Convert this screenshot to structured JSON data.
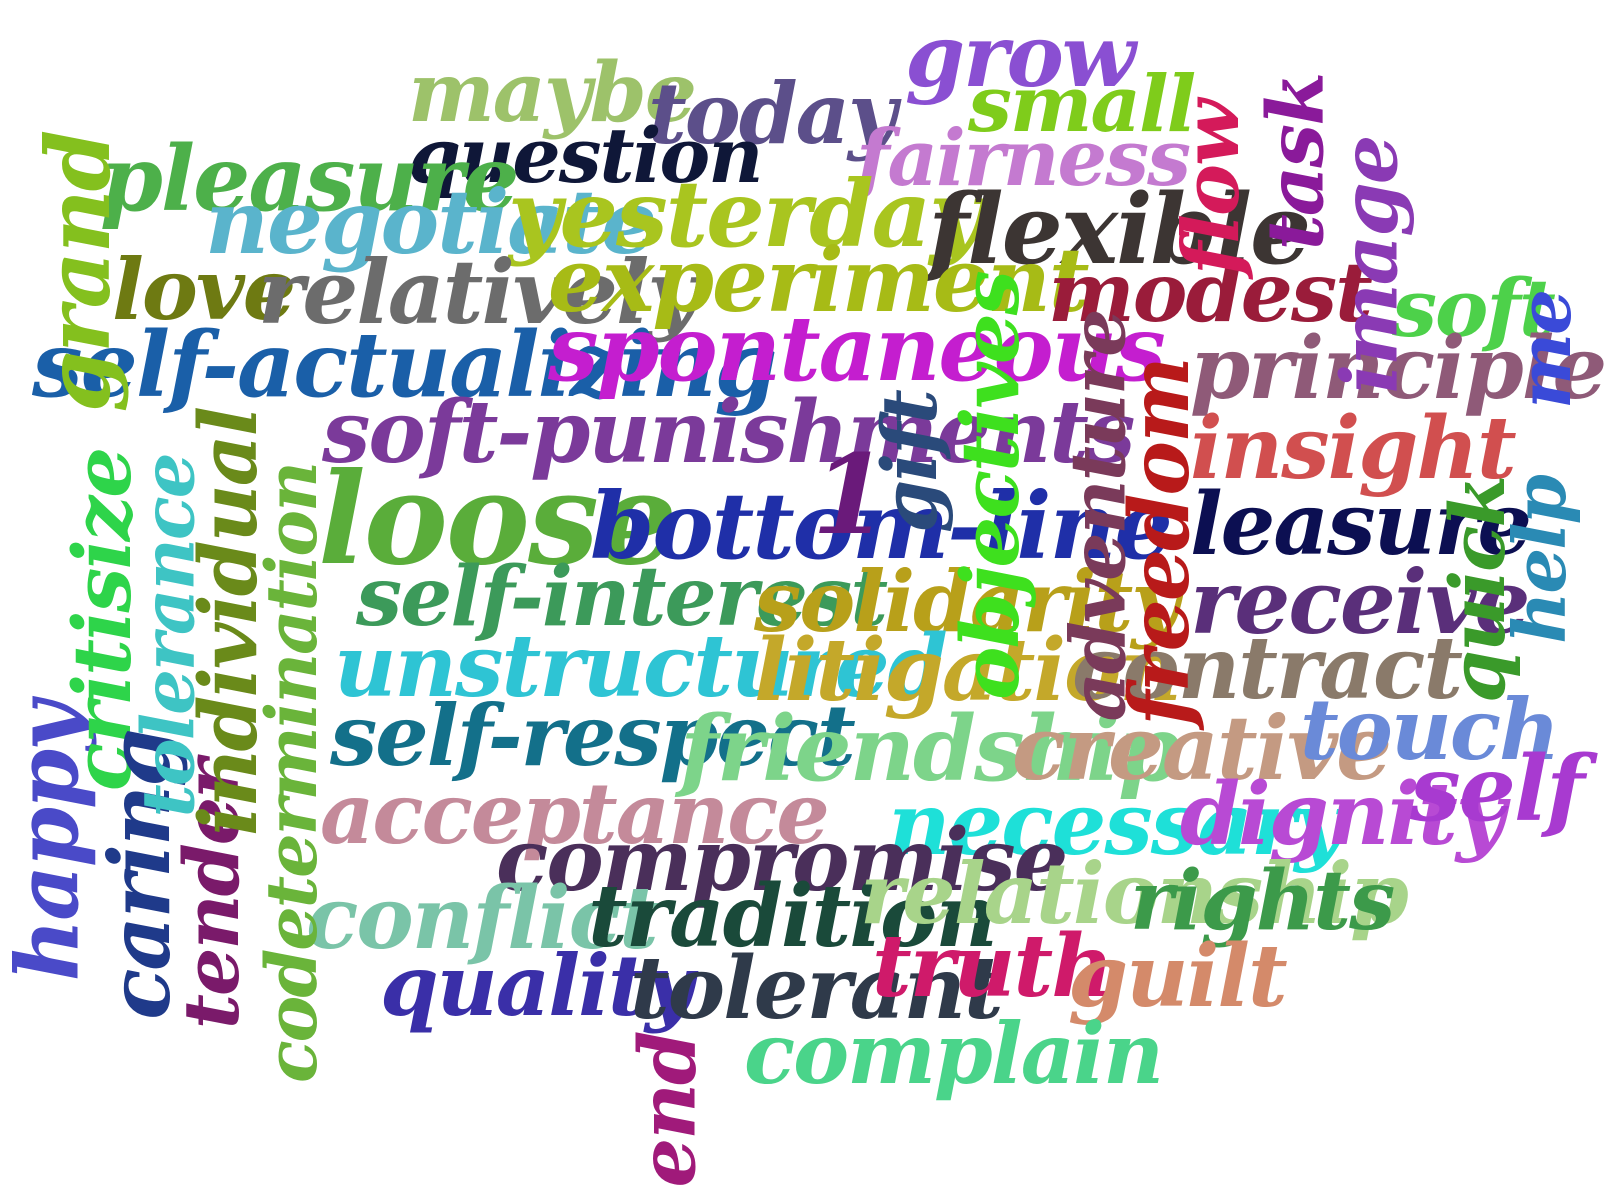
{
  "words": [
    {
      "text": "grow",
      "color": "#8a4fd2"
    },
    {
      "text": "maybe",
      "color": "#9dc26a"
    },
    {
      "text": "today",
      "color": "#5c4f8a"
    },
    {
      "text": "small",
      "color": "#7fcc1b"
    },
    {
      "text": "question",
      "color": "#0f1738"
    },
    {
      "text": "fairness",
      "color": "#c47ad0"
    },
    {
      "text": "pleasure",
      "color": "#4db04a"
    },
    {
      "text": "negotiate",
      "color": "#5ab4cc"
    },
    {
      "text": "yesterday",
      "color": "#a9c51f"
    },
    {
      "text": "flexible",
      "color": "#3c3533"
    },
    {
      "text": "love",
      "color": "#6e7a12"
    },
    {
      "text": "relatively",
      "color": "#6c6c6c"
    },
    {
      "text": "experiment",
      "color": "#a7bb16"
    },
    {
      "text": "modest",
      "color": "#9a1c3a"
    },
    {
      "text": "soft",
      "color": "#4dd14a"
    },
    {
      "text": "self-actualizing",
      "color": "#1a5fa8"
    },
    {
      "text": "spontaneous",
      "color": "#c41ecf"
    },
    {
      "text": "principle",
      "color": "#8f5a78"
    },
    {
      "text": "soft-punishments",
      "color": "#7b3a9a"
    },
    {
      "text": "insight",
      "color": "#d14f4f"
    },
    {
      "text": "loose",
      "color": "#5aad3a"
    },
    {
      "text": "bottom-line",
      "color": "#1f2fa8"
    },
    {
      "text": "leasure",
      "color": "#0c0f52"
    },
    {
      "text": "self-interest",
      "color": "#3c9a5a"
    },
    {
      "text": "solidarity",
      "color": "#b8a01a"
    },
    {
      "text": "receive",
      "color": "#5a2f7a"
    },
    {
      "text": "unstructured",
      "color": "#2ec4d4"
    },
    {
      "text": "litigation",
      "color": "#c4a82a"
    },
    {
      "text": "contract",
      "color": "#8a7a6a"
    },
    {
      "text": "self-respect",
      "color": "#13708a"
    },
    {
      "text": "friendship",
      "color": "#7dd48a"
    },
    {
      "text": "creative",
      "color": "#c49a82"
    },
    {
      "text": "touch",
      "color": "#6a8ad8"
    },
    {
      "text": "acceptance",
      "color": "#c48a9a"
    },
    {
      "text": "necessary",
      "color": "#1ee0d8"
    },
    {
      "text": "dignity",
      "color": "#b84ad4"
    },
    {
      "text": "self",
      "color": "#a83ad0"
    },
    {
      "text": "compromise",
      "color": "#4a2f5a"
    },
    {
      "text": "conflict",
      "color": "#7ac4a8"
    },
    {
      "text": "tradition",
      "color": "#1a4a3a"
    },
    {
      "text": "relationship",
      "color": "#a8d48a"
    },
    {
      "text": "rights",
      "color": "#3c9a4a"
    },
    {
      "text": "quality",
      "color": "#3a2fa8"
    },
    {
      "text": "tolerant",
      "color": "#2f3a4a"
    },
    {
      "text": "truth",
      "color": "#cf1a6a"
    },
    {
      "text": "guilt",
      "color": "#d48a6a"
    },
    {
      "text": "complain",
      "color": "#4ad48a"
    },
    {
      "text": "grand",
      "color": "#84c01e"
    },
    {
      "text": "happy",
      "color": "#4a4ac8"
    },
    {
      "text": "critisize",
      "color": "#2ed44a"
    },
    {
      "text": "caring",
      "color": "#1f3a8a"
    },
    {
      "text": "tolerance",
      "color": "#3ec4c4"
    },
    {
      "text": "tender",
      "color": "#7a1a6a"
    },
    {
      "text": "individual",
      "color": "#6a8a1a"
    },
    {
      "text": "codetermination",
      "color": "#6ab43a"
    },
    {
      "text": "1",
      "color": "#6a1a7a"
    },
    {
      "text": "gift",
      "color": "#2a4a7a"
    },
    {
      "text": "objectives",
      "color": "#3ee01e"
    },
    {
      "text": "adventure",
      "color": "#7a3a5a"
    },
    {
      "text": "freedom",
      "color": "#b81a1a"
    },
    {
      "text": "flow",
      "color": "#d41a5a"
    },
    {
      "text": "task",
      "color": "#8a1a9a"
    },
    {
      "text": "image",
      "color": "#8a3ab4"
    },
    {
      "text": "me",
      "color": "#3a4ad8"
    },
    {
      "text": "help",
      "color": "#2a8ab4"
    },
    {
      "text": "quick",
      "color": "#3a9a2a"
    },
    {
      "text": "end",
      "color": "#a01a7a"
    }
  ]
}
